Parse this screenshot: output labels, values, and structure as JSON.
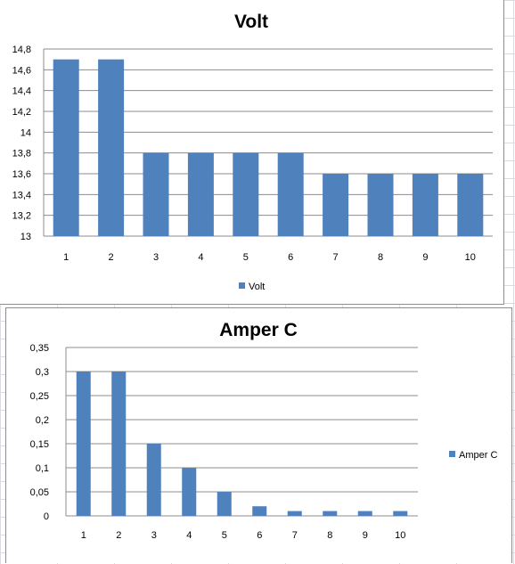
{
  "chart_data": [
    {
      "type": "bar",
      "title": "Volt",
      "categories": [
        "1",
        "2",
        "3",
        "4",
        "5",
        "6",
        "7",
        "8",
        "9",
        "10"
      ],
      "series": [
        {
          "name": "Volt",
          "values": [
            14.7,
            14.7,
            13.8,
            13.8,
            13.8,
            13.8,
            13.6,
            13.6,
            13.6,
            13.6
          ]
        }
      ],
      "ylim": [
        13,
        14.8
      ],
      "y_ticks": [
        "13",
        "13,2",
        "13,4",
        "13,6",
        "13,8",
        "14",
        "14,2",
        "14,4",
        "14,6",
        "14,8"
      ],
      "bar_color": "#4f81bd",
      "grid": true,
      "legend_position": "bottom"
    },
    {
      "type": "bar",
      "title": "Amper C",
      "categories": [
        "1",
        "2",
        "3",
        "4",
        "5",
        "6",
        "7",
        "8",
        "9",
        "10"
      ],
      "series": [
        {
          "name": "Amper C",
          "values": [
            0.3,
            0.3,
            0.15,
            0.1,
            0.05,
            0.02,
            0.01,
            0.01,
            0.01,
            0.01
          ]
        }
      ],
      "ylim": [
        0,
        0.35
      ],
      "y_ticks": [
        "0",
        "0,05",
        "0,1",
        "0,15",
        "0,2",
        "0,25",
        "0,3",
        "0,35"
      ],
      "bar_color": "#4f81bd",
      "grid": true,
      "legend_position": "right"
    }
  ]
}
